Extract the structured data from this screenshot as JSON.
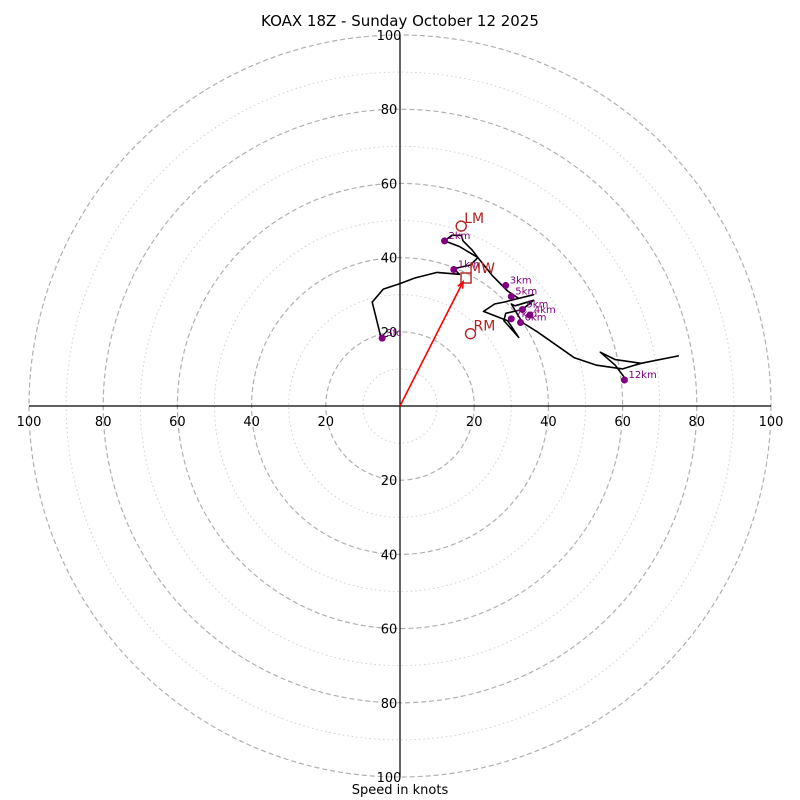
{
  "title": "KOAX 18Z - Sunday October 12 2025",
  "chart_data": {
    "type": "hodograph",
    "title": "KOAX 18Z - Sunday October 12 2025",
    "xlabel": "Speed in knots",
    "range": [
      -100,
      100
    ],
    "ring_major": [
      20,
      40,
      60,
      80,
      100
    ],
    "ring_minor": [
      10,
      30,
      50,
      70,
      90
    ],
    "tick_values": [
      100,
      80,
      60,
      40,
      20
    ],
    "tick_labels": {
      "x_left": [
        "100",
        "80",
        "60",
        "40",
        "20"
      ],
      "x_right": [
        "20",
        "40",
        "60",
        "80",
        "100"
      ],
      "y_top": [
        "100",
        "80",
        "60",
        "40",
        "20"
      ],
      "y_bottom": [
        "20",
        "40",
        "60",
        "80",
        "100"
      ]
    },
    "trace": [
      [
        -5,
        18
      ],
      [
        -7.5,
        28
      ],
      [
        -4.5,
        31.5
      ],
      [
        0,
        33
      ],
      [
        4,
        34.5
      ],
      [
        10,
        36
      ],
      [
        16,
        35.5
      ],
      [
        14.5,
        37
      ],
      [
        19,
        38
      ],
      [
        21,
        40
      ],
      [
        19.5,
        42
      ],
      [
        17,
        44.5
      ],
      [
        16.5,
        46
      ],
      [
        14,
        46
      ],
      [
        12,
        44.5
      ],
      [
        16,
        43
      ],
      [
        21,
        40
      ],
      [
        25,
        35
      ],
      [
        29,
        31
      ],
      [
        32,
        29
      ],
      [
        36,
        30
      ],
      [
        28,
        28
      ],
      [
        25.5,
        27.5
      ],
      [
        22.5,
        25.5
      ],
      [
        29,
        23
      ],
      [
        32,
        18.5
      ],
      [
        28,
        23
      ],
      [
        28.5,
        25
      ],
      [
        33,
        26
      ],
      [
        36,
        28.5
      ],
      [
        31,
        27
      ],
      [
        30,
        27.5
      ],
      [
        33,
        22.5
      ],
      [
        37,
        20
      ],
      [
        47,
        13
      ],
      [
        53,
        11
      ],
      [
        60,
        10
      ],
      [
        65,
        11.5
      ],
      [
        75,
        13.5
      ],
      [
        65,
        11.5
      ],
      [
        58,
        12.5
      ],
      [
        54,
        14.5
      ],
      [
        58,
        11
      ],
      [
        61,
        7
      ]
    ],
    "height_markers": [
      {
        "label": "Sfc",
        "u": -4.8,
        "v": 18.3
      },
      {
        "label": "1km",
        "u": 14.5,
        "v": 36.8
      },
      {
        "label": "2km",
        "u": 12,
        "v": 44.5
      },
      {
        "label": "3km",
        "u": 28.5,
        "v": 32.5
      },
      {
        "label": "4km",
        "u": 35,
        "v": 24.5
      },
      {
        "label": "5km",
        "u": 30,
        "v": 29.5
      },
      {
        "label": "6km",
        "u": 32.5,
        "v": 22.5
      },
      {
        "label": "7km",
        "u": 30,
        "v": 23.5
      },
      {
        "label": "9km",
        "u": 33,
        "v": 26
      },
      {
        "label": "12km",
        "u": 60.5,
        "v": 7
      }
    ],
    "storm_motion": {
      "LM": {
        "label": "LM",
        "u": 16.5,
        "v": 48.5
      },
      "RM": {
        "label": "RM",
        "u": 19,
        "v": 19.5
      },
      "MW": {
        "label": "MW",
        "u": 17.8,
        "v": 34.5
      }
    },
    "shear_vector": {
      "from": [
        0,
        0
      ],
      "to": [
        17,
        33.5
      ]
    },
    "colors": {
      "trace": "#000000",
      "marker": "#800080",
      "storm": "#b22222",
      "shear": "#ff0000",
      "grid": "#b0b0b0",
      "grid_minor": "#d0d0d0"
    }
  }
}
